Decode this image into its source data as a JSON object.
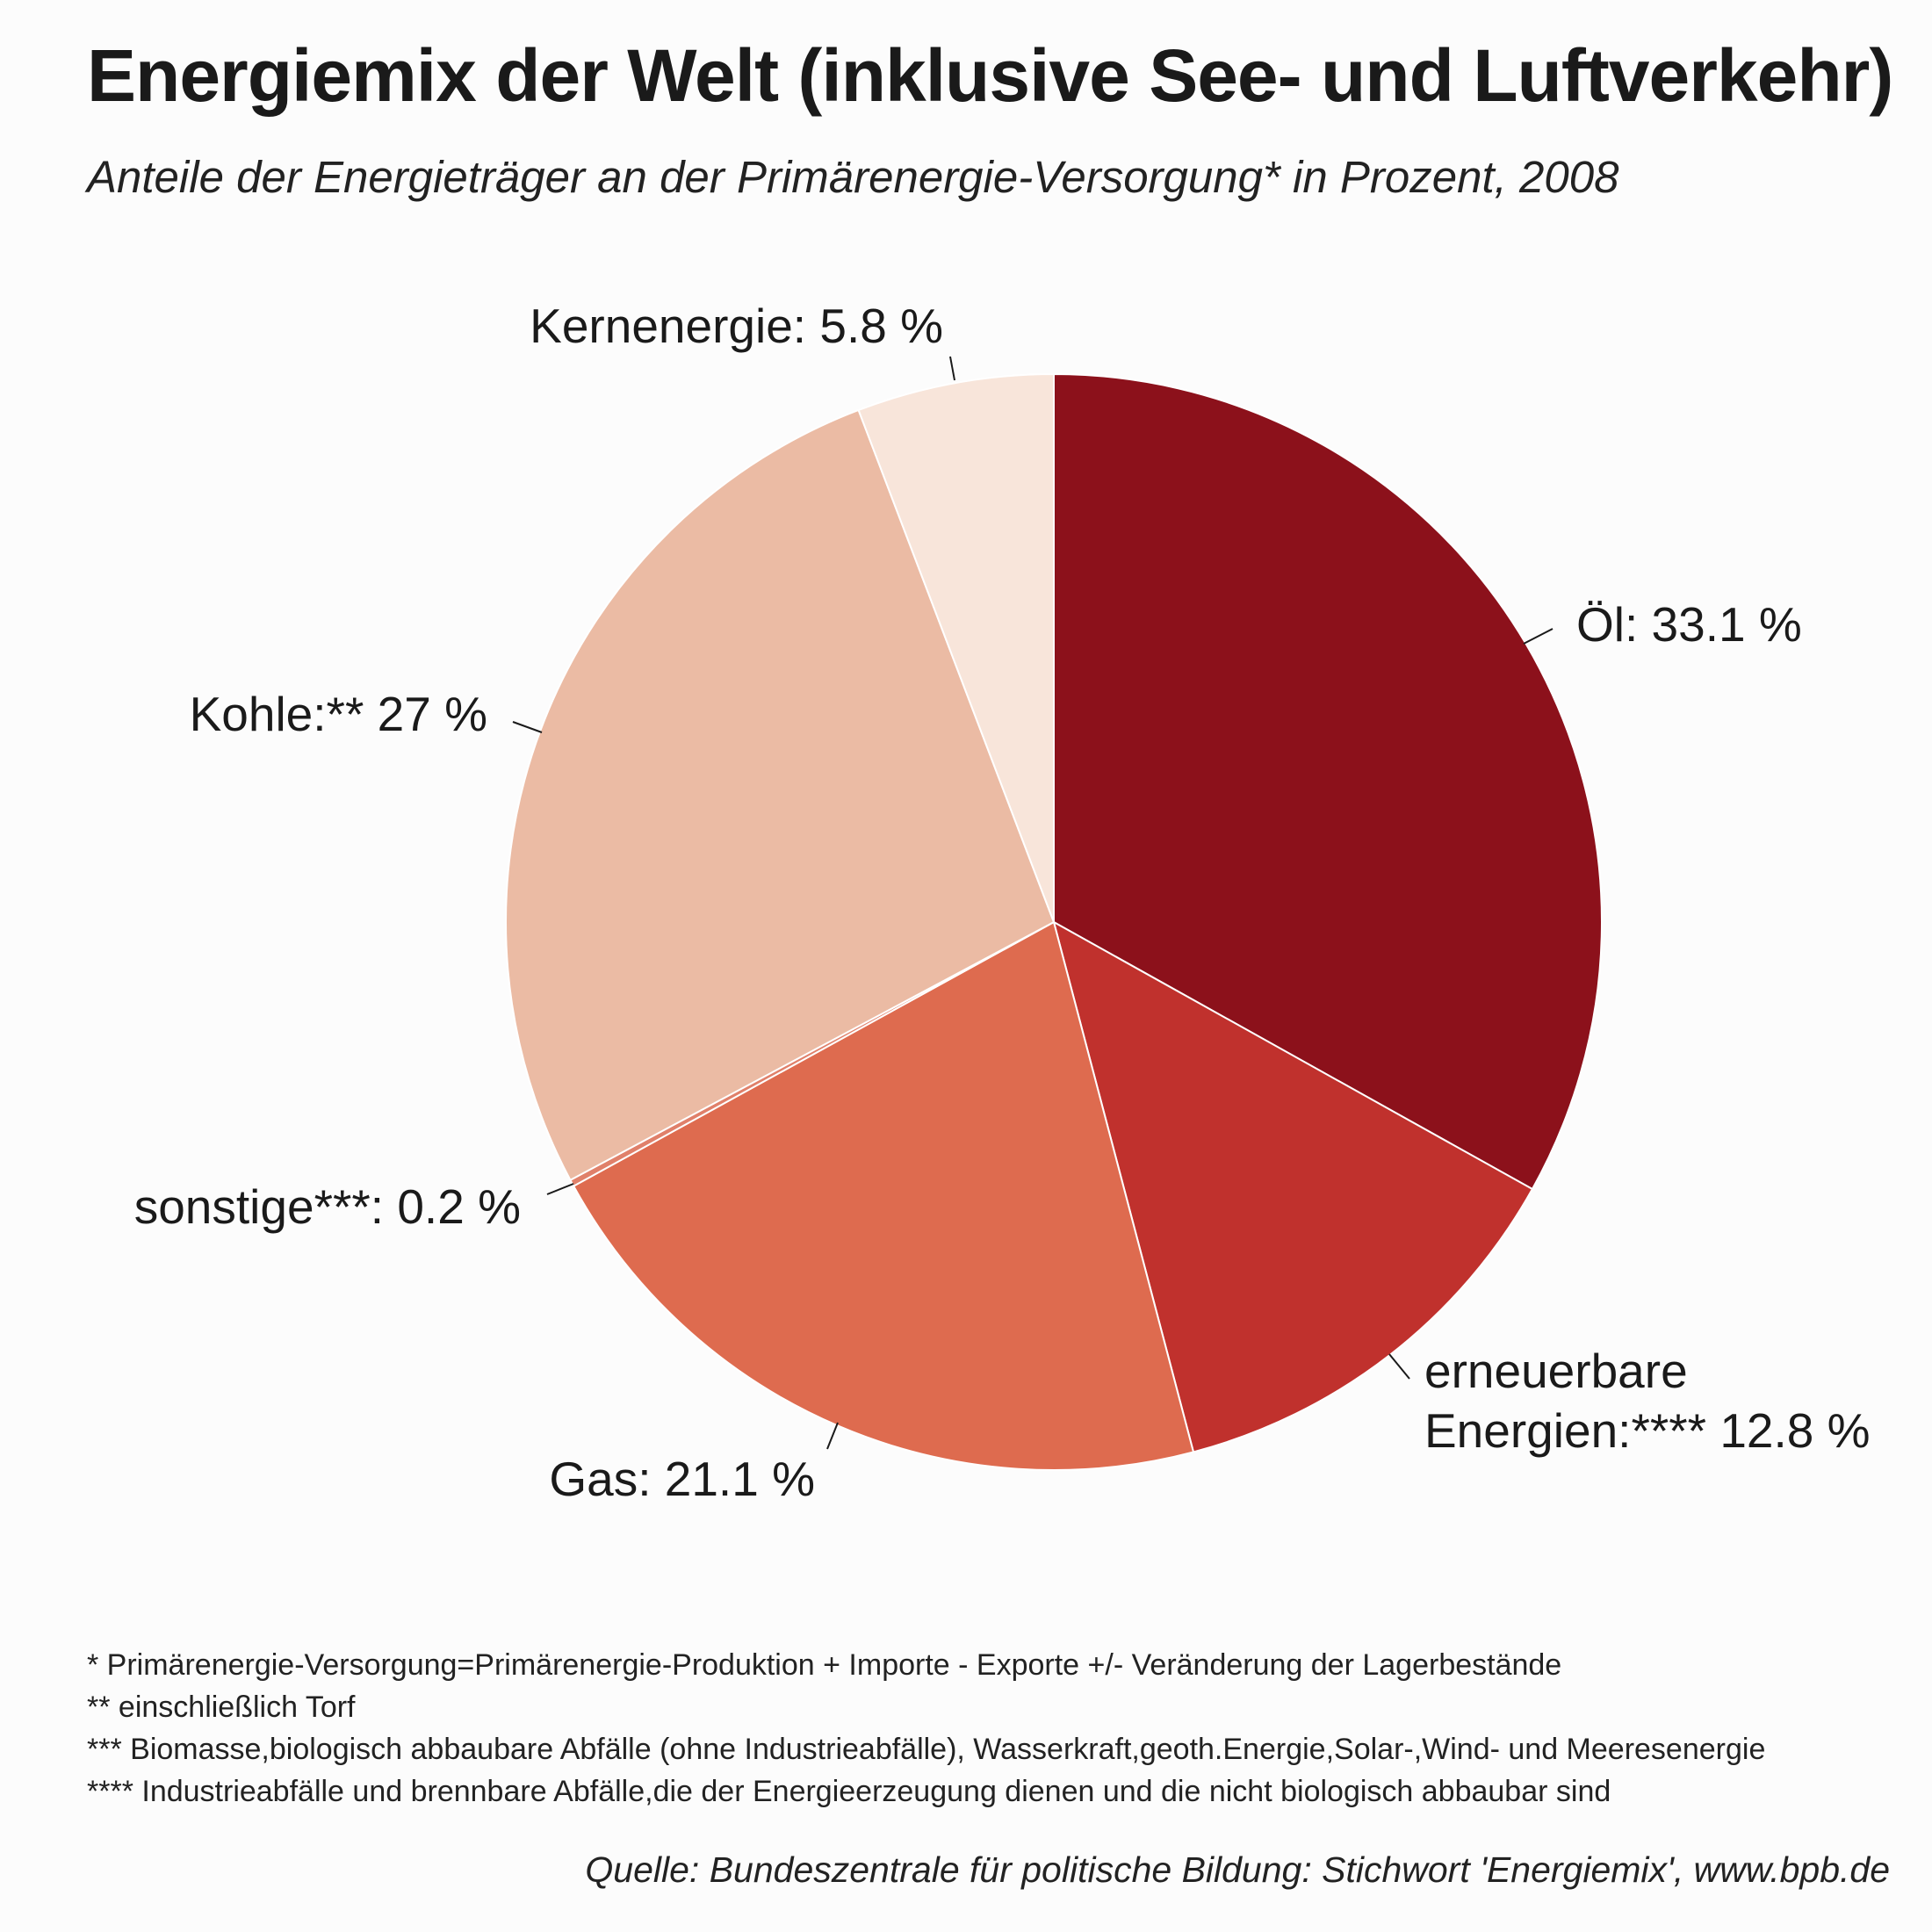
{
  "chart_data": {
    "type": "pie",
    "title": "Energiemix der Welt (inklusive See- und Luftverkehr)",
    "subtitle": "Anteile der Energieträger an der Primärenergie-Versorgung* in Prozent, 2008",
    "slices": [
      {
        "name": "Öl",
        "value": 33.1,
        "label": "Öl: 33.1 %",
        "color": "#8c111b"
      },
      {
        "name": "erneuerbare Energien",
        "value": 12.8,
        "label_lines": [
          "erneuerbare",
          "Energien:**** 12.8 %"
        ],
        "color": "#c0312d"
      },
      {
        "name": "Gas",
        "value": 21.1,
        "label": "Gas: 21.1 %",
        "color": "#de6b4f"
      },
      {
        "name": "sonstige",
        "value": 0.2,
        "label": "sonstige***: 0.2 %",
        "color": "#e0806a"
      },
      {
        "name": "Kohle",
        "value": 27,
        "label": "Kohle:** 27 %",
        "color": "#ebbba4"
      },
      {
        "name": "Kernenergie",
        "value": 5.8,
        "label": "Kernenergie: 5.8 %",
        "color": "#f8e5da"
      }
    ]
  },
  "footnotes": [
    "* Primärenergie-Versorgung=Primärenergie-Produktion + Importe - Exporte +/- Veränderung der Lagerbestände",
    "** einschließlich Torf",
    "*** Biomasse,biologisch abbaubare Abfälle (ohne Industrieabfälle), Wasserkraft,geoth.Energie,Solar-,Wind- und Meeresenergie",
    "**** Industrieabfälle und brennbare Abfälle,die der Energieerzeugung dienen und die nicht biologisch abbaubar sind"
  ],
  "source": "Quelle: Bundeszentrale für politische Bildung: Stichwort 'Energiemix', www.bpb.de"
}
